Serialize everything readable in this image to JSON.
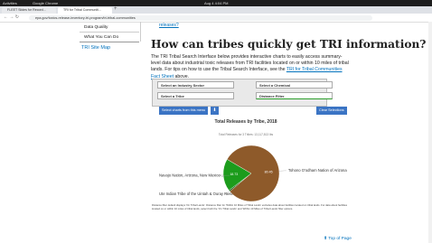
{
  "os_bar": {
    "activities": "Activities",
    "app": "Google Chrome",
    "clock": "Aug 4  4:04 PM"
  },
  "tabs": [
    "FLEET Slides for Record...",
    "TRI for Tribal Communiti..."
  ],
  "address": "epa.gov/toxics-release-inventory-tri-program/tri-tribal-communities",
  "sidebar": {
    "items": [
      "Data Quality",
      "What You Can Do"
    ],
    "site_map": "TRI Site Map"
  },
  "article": {
    "prev_link": "releases?",
    "heading": "How can tribes quickly get TRI information?",
    "paragraph": {
      "before": "The TRI Tribal Search Interface below provides interactive charts to easily access summary-level data about industrial toxic releases from TRI facilities located on or within 10 miles of tribal lands. For tips on how to use the Tribal Search Interface, see the ",
      "link": "TRI for Tribal Communities Fact Sheet",
      "after": " above."
    }
  },
  "filters": [
    "Select an Industry Sector",
    "Select a Chemical",
    "Select a Tribe",
    "Distance Filter"
  ],
  "buttons": {
    "charts": "Select charts from this menu",
    "clear": "Clear Selections"
  },
  "chart_data": {
    "type": "pie",
    "title": "Total Releases by Tribe, 2018",
    "subtitle": "Total Releases for 3 Tribes: 13,117,813 lbs",
    "categories": [
      "Ute Indian Tribe of the Uintah & Ouray Reser...",
      "Navajo Nation, Arizona, New Mexico ...",
      "Tohono O'odham Nation of Arizona"
    ],
    "values": [
      0.82,
      18.73,
      80.45
    ],
    "colors": [
      "#0b5d0b",
      "#1c9c1c",
      "#8e5a2a"
    ]
  },
  "footnote": "Distance filter default displays 'On Tribal Lands'. Distance filter for 'Within 10 Miles of Tribal Lands' excludes data about facilities located on tribal lands. For data about facilities located on or within 10 miles of tribal lands, select both the 'On Tribal Lands' and 'Within 10 Miles of Tribal Lands' filter options.",
  "top_link": "Top of Page"
}
